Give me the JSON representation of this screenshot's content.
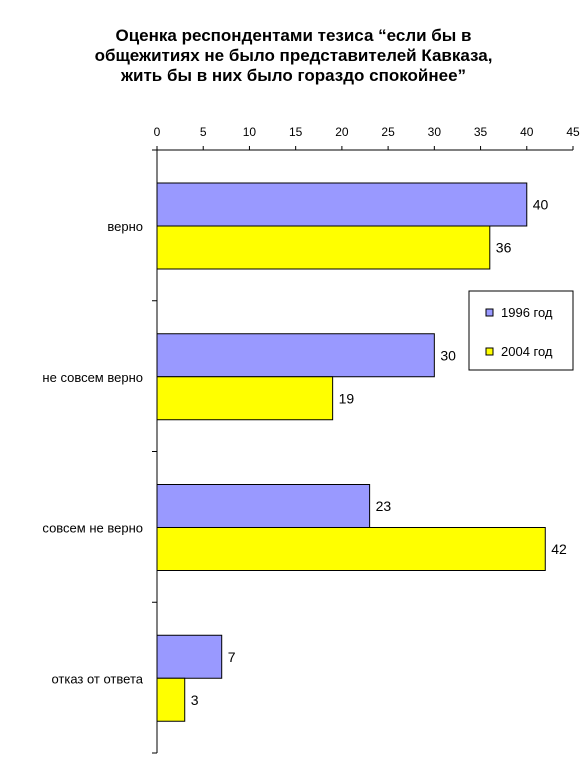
{
  "chart_data": {
    "type": "bar",
    "orientation": "horizontal",
    "title_lines": [
      "Оценка респондентами тезиса “если бы в",
      "общежитиях не  было представителей Кавказа,",
      "жить бы в них было гораздо спокойнее”"
    ],
    "categories": [
      "верно",
      "не совсем верно",
      "совсем не верно",
      "отказ от ответа"
    ],
    "series": [
      {
        "name": "1996 год",
        "values": [
          40,
          30,
          23,
          7
        ],
        "color": "#9999ff"
      },
      {
        "name": "2004 год",
        "values": [
          36,
          19,
          42,
          3
        ],
        "color": "#ffff00"
      }
    ],
    "xlim": [
      0,
      45
    ],
    "x_ticks": [
      0,
      5,
      10,
      15,
      20,
      25,
      30,
      35,
      40,
      45
    ],
    "x_axis_position": "top",
    "grid": false,
    "legend_position": "right",
    "data_labels": true
  }
}
